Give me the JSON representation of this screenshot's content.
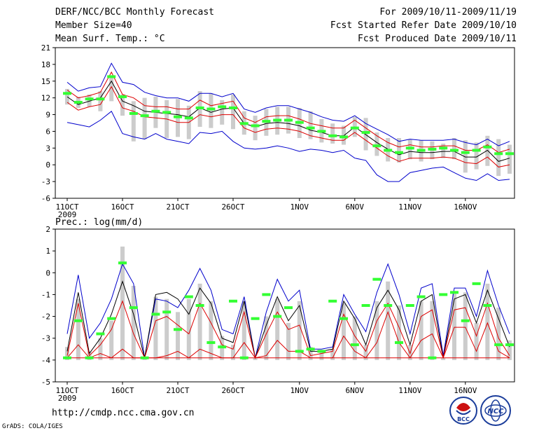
{
  "header": {
    "title": "DERF/NCC/BCC Monthly Forecast",
    "member_size": "Member Size=40",
    "variable": "Mean Surf. Temp.: °C",
    "period": "For 2009/10/11-2009/11/19",
    "started": "Fcst Started Refer Date 2009/10/10",
    "produced": "Fcst Produced Date 2009/10/11"
  },
  "footer": {
    "url": "http://cmdp.ncc.cma.gov.cn",
    "credit": "GrADS: COLA/IGES",
    "logo_bcc": "BCC",
    "logo_ncc": "NCC"
  },
  "chart_data": [
    {
      "type": "line",
      "title": "Mean Surf. Temp.: °C",
      "ylim": [
        -6,
        21
      ],
      "yticks": [
        21,
        18,
        15,
        12,
        9,
        6,
        3,
        0,
        -3,
        -6
      ],
      "xticks": [
        {
          "day": 1,
          "label": "11OCT"
        },
        {
          "day": 6,
          "label": "16OCT"
        },
        {
          "day": 11,
          "label": "21OCT"
        },
        {
          "day": 16,
          "label": "26OCT"
        },
        {
          "day": 22,
          "label": "1NOV"
        },
        {
          "day": 27,
          "label": "6NOV"
        },
        {
          "day": 32,
          "label": "11NOV"
        },
        {
          "day": 37,
          "label": "16NOV"
        }
      ],
      "year_label": "2009",
      "series": [
        {
          "name": "max",
          "color": "#0000cc",
          "values": [
            14.8,
            13.2,
            13.8,
            14.0,
            18.2,
            14.8,
            14.4,
            13.0,
            12.4,
            12.0,
            12.0,
            11.4,
            12.8,
            12.8,
            12.2,
            12.8,
            10.0,
            9.4,
            10.2,
            10.6,
            10.6,
            10.0,
            9.4,
            8.6,
            8.0,
            7.8,
            8.8,
            7.4,
            6.4,
            5.4,
            4.2,
            4.6,
            4.4,
            4.4,
            4.4,
            4.6,
            4.0,
            3.6,
            4.6,
            3.4,
            4.2
          ]
        },
        {
          "name": "upper",
          "color": "#dd0000",
          "values": [
            13.4,
            12.0,
            12.4,
            13.0,
            16.6,
            12.6,
            12.0,
            10.6,
            10.4,
            10.4,
            10.0,
            10.0,
            11.6,
            10.6,
            11.0,
            11.4,
            8.4,
            7.6,
            8.6,
            8.8,
            8.8,
            8.2,
            7.4,
            7.0,
            6.6,
            6.6,
            8.0,
            6.6,
            5.2,
            4.0,
            3.2,
            3.6,
            3.2,
            3.2,
            3.4,
            3.4,
            2.6,
            2.6,
            3.6,
            2.2,
            2.8
          ]
        },
        {
          "name": "mean",
          "color": "#000000",
          "values": [
            12.2,
            10.8,
            11.4,
            12.0,
            15.0,
            11.4,
            10.6,
            9.6,
            9.4,
            9.2,
            9.0,
            8.6,
            10.2,
            9.4,
            10.0,
            10.2,
            7.4,
            6.8,
            7.4,
            7.6,
            7.4,
            7.0,
            6.2,
            5.8,
            5.2,
            5.2,
            6.8,
            5.4,
            4.0,
            2.8,
            1.8,
            2.4,
            2.2,
            2.2,
            2.4,
            2.4,
            1.4,
            1.4,
            2.6,
            0.6,
            1.2
          ]
        },
        {
          "name": "lower",
          "color": "#dd0000",
          "values": [
            11.2,
            9.8,
            10.4,
            10.8,
            14.0,
            10.2,
            9.6,
            8.6,
            8.4,
            8.2,
            7.6,
            7.6,
            9.0,
            8.6,
            9.0,
            9.0,
            6.6,
            5.8,
            6.4,
            6.6,
            6.4,
            6.0,
            5.2,
            4.8,
            4.4,
            4.4,
            5.8,
            4.4,
            3.0,
            1.6,
            0.6,
            1.2,
            1.2,
            1.2,
            1.4,
            1.2,
            0.4,
            0.2,
            1.4,
            -0.4,
            0.0
          ]
        },
        {
          "name": "min",
          "color": "#0000cc",
          "values": [
            7.6,
            7.2,
            6.8,
            8.0,
            9.6,
            5.6,
            5.0,
            4.6,
            5.6,
            4.6,
            4.2,
            3.8,
            5.8,
            5.6,
            6.0,
            4.2,
            3.0,
            2.8,
            3.0,
            3.4,
            3.0,
            2.4,
            2.8,
            2.6,
            2.2,
            2.6,
            1.2,
            0.8,
            -1.8,
            -3.0,
            -3.0,
            -1.4,
            -1.0,
            -0.6,
            -0.4,
            -1.4,
            -2.4,
            -2.8,
            -1.6,
            -2.8,
            -2.6
          ]
        }
      ],
      "bars": {
        "name": "daily range (grey bars)",
        "low": [
          10.8,
          10.2,
          10.4,
          9.6,
          11.4,
          8.8,
          4.2,
          4.6,
          6.6,
          4.8,
          5.0,
          4.6,
          6.8,
          6.6,
          7.2,
          6.4,
          5.4,
          4.4,
          5.2,
          5.4,
          5.6,
          4.8,
          4.6,
          4.0,
          3.8,
          3.6,
          5.0,
          2.6,
          1.6,
          0.6,
          0.4,
          1.0,
          0.6,
          1.0,
          1.2,
          1.0,
          -1.4,
          -0.8,
          -0.2,
          -2.0,
          -1.6
        ],
        "high": [
          13.6,
          12.2,
          12.6,
          13.2,
          16.0,
          12.6,
          11.4,
          12.0,
          12.2,
          11.6,
          11.8,
          10.6,
          13.2,
          12.8,
          11.6,
          12.6,
          9.6,
          8.8,
          10.0,
          10.4,
          10.4,
          10.2,
          9.6,
          8.2,
          7.4,
          7.0,
          8.6,
          8.4,
          5.8,
          4.8,
          4.8,
          4.6,
          4.4,
          4.2,
          3.8,
          4.8,
          4.4,
          4.0,
          5.2,
          4.6,
          3.6
        ]
      },
      "markers": {
        "name": "observation marks (green)",
        "color": "#33ff33",
        "values": [
          12.8,
          11.2,
          11.8,
          11.8,
          15.8,
          12.2,
          9.2,
          8.8,
          9.6,
          9.4,
          8.6,
          8.4,
          10.2,
          10.0,
          10.4,
          10.2,
          7.4,
          7.0,
          7.8,
          8.0,
          8.0,
          7.6,
          6.6,
          6.0,
          5.2,
          5.0,
          6.6,
          5.8,
          3.4,
          2.6,
          2.2,
          3.0,
          2.6,
          2.8,
          3.0,
          2.6,
          2.2,
          2.6,
          3.2,
          2.0,
          2.0
        ]
      }
    },
    {
      "type": "line",
      "title": "Prec.: log(mm/d)",
      "ylim": [
        -5,
        2
      ],
      "yticks": [
        2,
        1,
        0,
        -1,
        -2,
        -3,
        -4,
        -5
      ],
      "xticks": [
        {
          "day": 1,
          "label": "11OCT"
        },
        {
          "day": 6,
          "label": "16OCT"
        },
        {
          "day": 11,
          "label": "21OCT"
        },
        {
          "day": 16,
          "label": "26OCT"
        },
        {
          "day": 22,
          "label": "1NOV"
        },
        {
          "day": 27,
          "label": "6NOV"
        },
        {
          "day": 32,
          "label": "11NOV"
        },
        {
          "day": 37,
          "label": "16NOV"
        }
      ],
      "year_label": "2009",
      "series": [
        {
          "name": "max",
          "color": "#0000cc",
          "values": [
            -2.8,
            -0.1,
            -3.0,
            -2.3,
            -1.2,
            0.4,
            -0.5,
            -3.9,
            -1.2,
            -1.3,
            -1.6,
            -0.8,
            0.2,
            -0.8,
            -2.6,
            -2.8,
            -1.1,
            -3.9,
            -1.8,
            -0.3,
            -1.3,
            -0.8,
            -3.5,
            -3.5,
            -3.4,
            -1.0,
            -1.9,
            -2.7,
            -0.9,
            0.4,
            -1.0,
            -2.8,
            -0.7,
            -0.5,
            -3.8,
            -0.7,
            -0.7,
            -2.0,
            0.1,
            -1.5,
            -2.8
          ]
        },
        {
          "name": "mean",
          "color": "#000000",
          "values": [
            -3.6,
            -0.9,
            -3.7,
            -3.0,
            -1.9,
            -0.4,
            -1.9,
            -3.9,
            -1.0,
            -0.9,
            -1.2,
            -1.9,
            -0.7,
            -1.4,
            -3.0,
            -3.2,
            -1.3,
            -3.9,
            -2.4,
            -1.1,
            -2.2,
            -1.5,
            -3.6,
            -3.6,
            -3.5,
            -1.3,
            -2.1,
            -3.3,
            -1.6,
            -0.8,
            -1.7,
            -3.3,
            -1.3,
            -1.0,
            -3.9,
            -1.2,
            -1.0,
            -2.3,
            -0.8,
            -2.1,
            -3.4
          ]
        },
        {
          "name": "upper",
          "color": "#dd0000",
          "values": [
            -3.8,
            -1.4,
            -3.8,
            -3.3,
            -2.6,
            -1.3,
            -2.8,
            -3.9,
            -2.2,
            -2.0,
            -2.4,
            -2.8,
            -1.4,
            -2.3,
            -3.3,
            -3.5,
            -1.8,
            -3.9,
            -2.8,
            -1.8,
            -2.6,
            -2.4,
            -3.8,
            -3.7,
            -3.6,
            -1.9,
            -2.9,
            -3.6,
            -2.2,
            -1.4,
            -2.5,
            -3.7,
            -2.0,
            -1.7,
            -3.9,
            -1.7,
            -1.6,
            -2.9,
            -1.4,
            -3.0,
            -3.8
          ]
        },
        {
          "name": "lower",
          "color": "#dd0000",
          "values": [
            -3.9,
            -3.3,
            -3.9,
            -3.7,
            -3.9,
            -3.5,
            -3.9,
            -3.9,
            -3.9,
            -3.8,
            -3.6,
            -3.9,
            -3.5,
            -3.7,
            -3.9,
            -3.9,
            -3.2,
            -3.9,
            -3.8,
            -3.1,
            -3.6,
            -3.6,
            -3.9,
            -3.9,
            -3.9,
            -2.9,
            -3.6,
            -3.9,
            -3.2,
            -1.8,
            -3.2,
            -3.9,
            -3.1,
            -2.8,
            -3.9,
            -2.5,
            -2.5,
            -3.6,
            -2.3,
            -3.6,
            -3.9
          ]
        },
        {
          "name": "min",
          "color": "#dd0000",
          "values": [
            -3.9,
            -3.9,
            -3.9,
            -3.9,
            -3.9,
            -3.9,
            -3.9,
            -3.9,
            -3.9,
            -3.9,
            -3.9,
            -3.9,
            -3.9,
            -3.9,
            -3.9,
            -3.9,
            -3.9,
            -3.9,
            -3.9,
            -3.9,
            -3.9,
            -3.9,
            -3.9,
            -3.9,
            -3.9,
            -3.9,
            -3.9,
            -3.9,
            -3.9,
            -3.9,
            -3.9,
            -3.9,
            -3.9,
            -3.9,
            -3.9,
            -3.9,
            -3.9,
            -3.9,
            -3.9,
            -3.9,
            -3.9
          ]
        }
      ],
      "bars": {
        "name": "daily range (grey bars)",
        "low": [
          -4.0,
          -4.0,
          -4.0,
          -4.0,
          -4.0,
          -4.0,
          -4.0,
          -4.0,
          -4.0,
          -4.0,
          -4.0,
          -4.0,
          -4.0,
          -4.0,
          -4.0,
          -4.0,
          -4.0,
          -4.0,
          -4.0,
          -4.0,
          -4.0,
          -4.0,
          -4.0,
          -4.0,
          -4.0,
          -4.0,
          -4.0,
          -4.0,
          -4.0,
          -4.0,
          -4.0,
          -4.0,
          -4.0,
          -4.0,
          -4.0,
          -4.0,
          -4.0,
          -4.0,
          -4.0,
          -4.0,
          -4.0
        ],
        "high": [
          -3.4,
          -1.2,
          -3.6,
          -3.0,
          -2.2,
          1.2,
          -0.6,
          -3.9,
          -1.1,
          -1.2,
          -1.8,
          -1.2,
          -0.5,
          -1.3,
          -2.9,
          -3.3,
          -1.3,
          -3.9,
          -2.0,
          -1.2,
          -2.3,
          -1.3,
          -3.4,
          -3.6,
          -3.5,
          -1.4,
          -2.0,
          -3.3,
          -1.3,
          -0.4,
          -1.5,
          -3.3,
          -1.3,
          -1.3,
          -3.9,
          -0.9,
          -0.9,
          -2.3,
          -0.5,
          -1.6,
          -3.1
        ]
      },
      "markers": {
        "name": "observation marks (green)",
        "color": "#33ff33",
        "values": [
          -3.9,
          -2.2,
          -3.9,
          -2.8,
          -2.1,
          0.45,
          -1.6,
          -3.9,
          -1.9,
          -1.8,
          -2.6,
          -1.1,
          -1.5,
          -3.2,
          -3.4,
          -1.3,
          -3.9,
          -2.1,
          -1.0,
          -2.0,
          -1.6,
          -3.6,
          -3.5,
          -3.6,
          -1.3,
          -2.1,
          -3.3,
          -1.5,
          -0.3,
          -1.5,
          -3.2,
          -1.5,
          -1.1,
          -3.9,
          -1.0,
          -0.9,
          -2.2,
          -0.5,
          -1.5,
          -3.3,
          -3.3
        ]
      }
    }
  ]
}
